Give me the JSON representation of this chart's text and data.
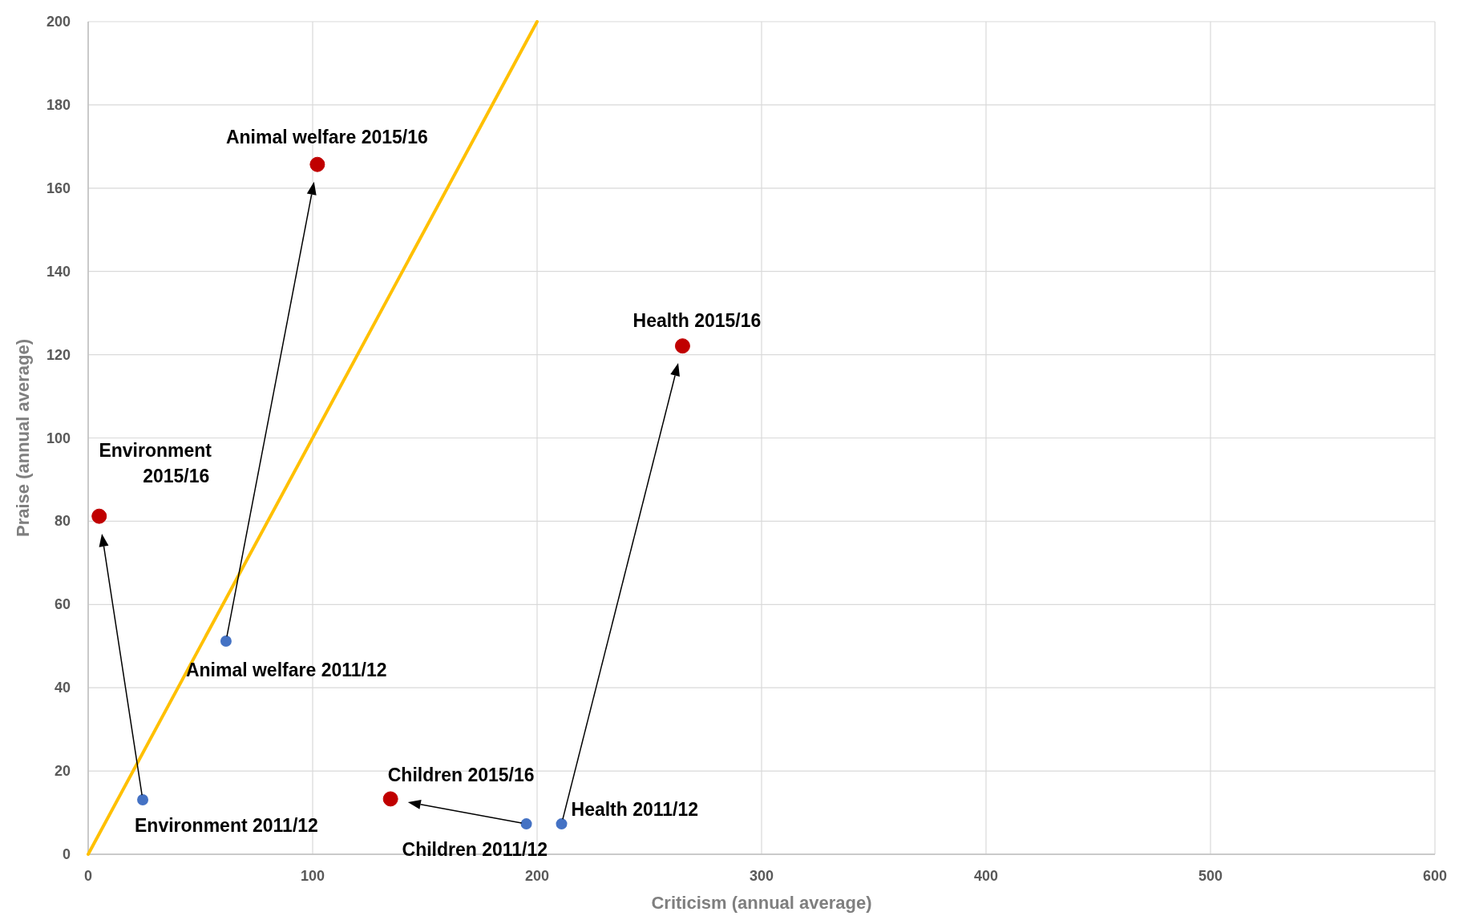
{
  "chart_data": {
    "type": "scatter",
    "xlabel": "Criticism (annual average)",
    "ylabel": "Praise (annual average)",
    "xlim": [
      0,
      600
    ],
    "ylim": [
      0,
      200
    ],
    "xticks": [
      0,
      100,
      200,
      300,
      400,
      500,
      600
    ],
    "yticks": [
      0,
      20,
      40,
      60,
      80,
      100,
      120,
      140,
      160,
      180,
      200
    ],
    "grid": true,
    "marker": "circle",
    "series": [
      {
        "type": "line",
        "color": "#ffc000",
        "x": [
          0,
          200
        ],
        "values": [
          0,
          200
        ],
        "marker": "none"
      },
      {
        "color": "#4472c4",
        "x": [
          24.3,
          61.4,
          195.2,
          210.9
        ],
        "values": [
          13.1,
          51.2,
          7.3,
          7.3
        ]
      },
      {
        "color": "#c00000",
        "x": [
          4.9,
          102.1,
          134.7,
          264.8
        ],
        "values": [
          81.2,
          165.7,
          13.3,
          122.1
        ]
      }
    ],
    "annotations": [
      {
        "text": "Environment 2011/12",
        "x": 24.3,
        "y": 13.1
      },
      {
        "text": "Animal welfare 2011/12",
        "x": 61.4,
        "y": 51.2
      },
      {
        "text": "Children 2011/12",
        "x": 195.2,
        "y": 7.3
      },
      {
        "text": "Health 2011/12",
        "x": 210.9,
        "y": 7.3
      },
      {
        "text": "Environment 2015/16",
        "x": 4.9,
        "y": 81.2
      },
      {
        "text": "Animal welfare 2015/16",
        "x": 102.1,
        "y": 165.7
      },
      {
        "text": "Children 2015/16",
        "x": 134.7,
        "y": 13.3
      },
      {
        "text": "Health 2015/16",
        "x": 264.8,
        "y": 122.1
      }
    ]
  }
}
